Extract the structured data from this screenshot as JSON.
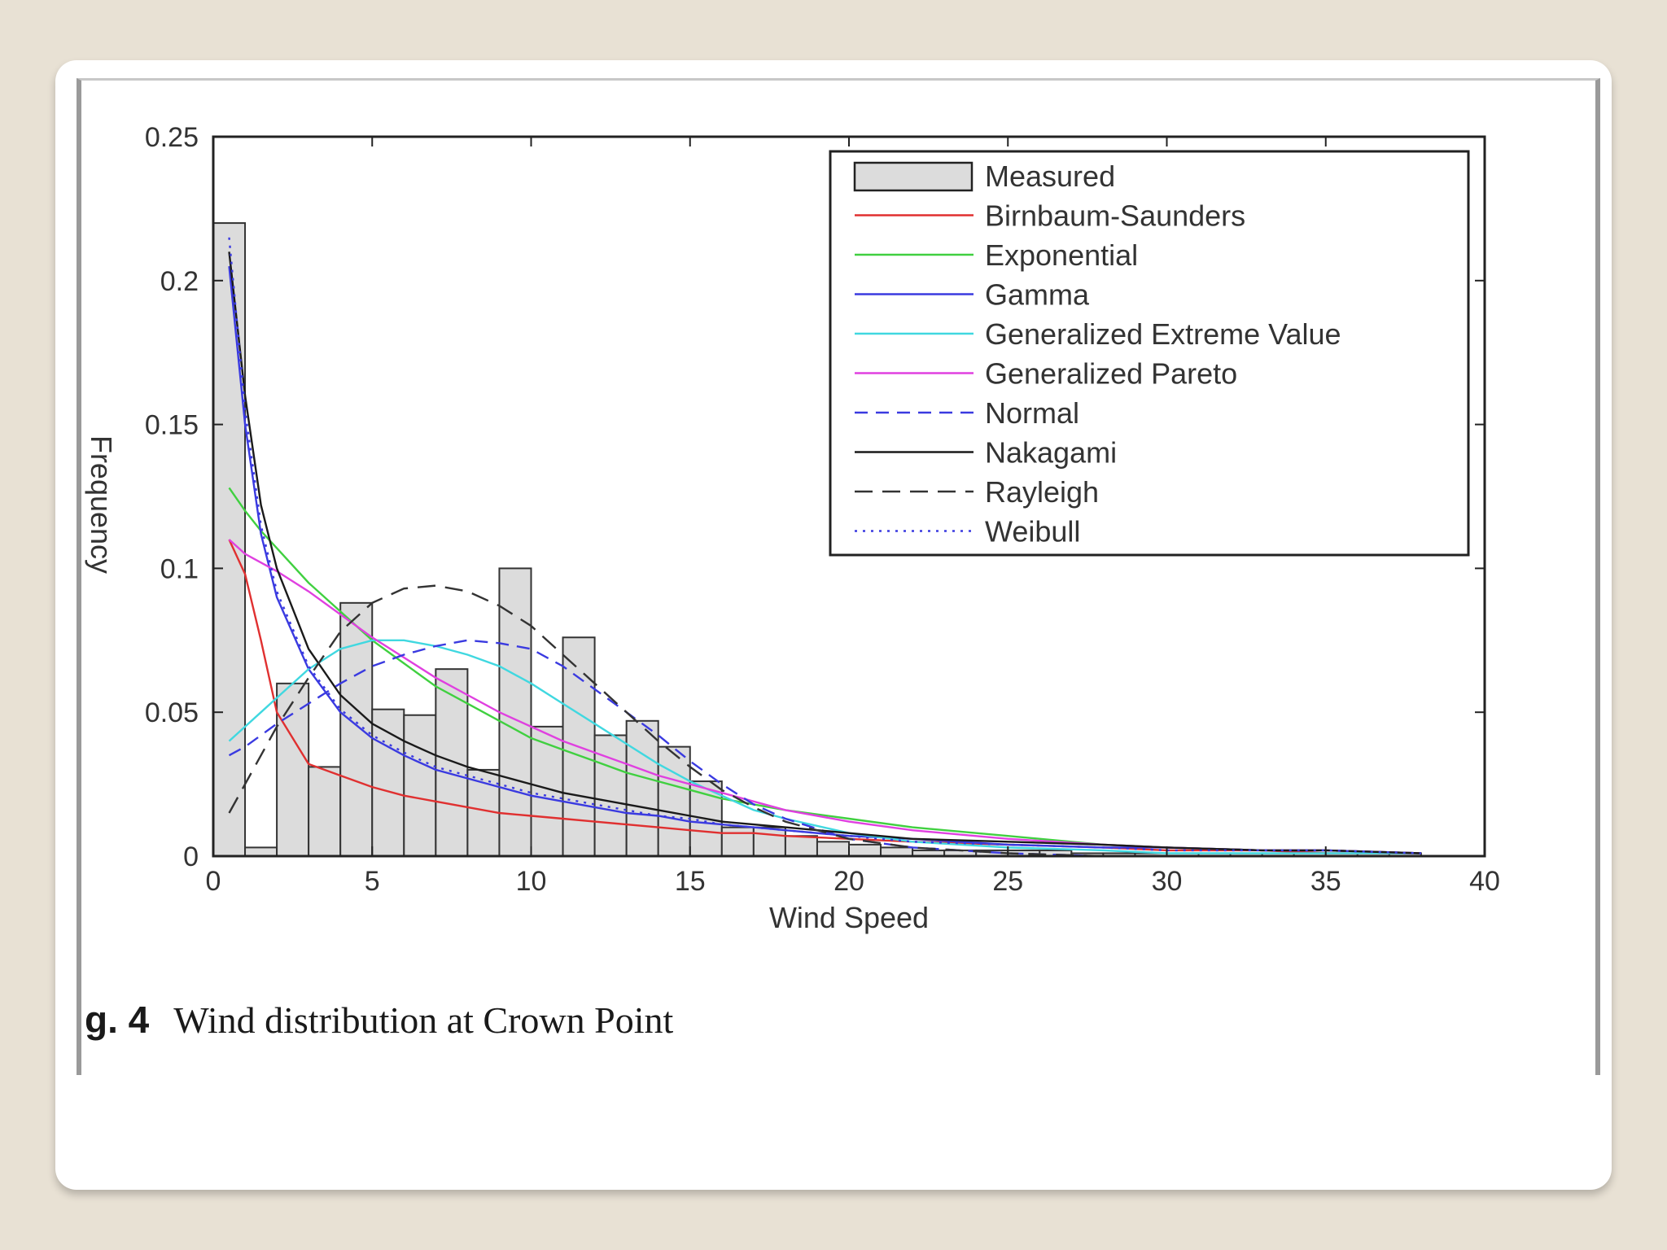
{
  "caption": {
    "label": "g. 4",
    "text": "Wind distribution at Crown Point"
  },
  "chart_data": {
    "type": "bar",
    "title": "",
    "xlabel": "Wind Speed",
    "ylabel": "Frequency",
    "xlim": [
      0,
      40
    ],
    "ylim": [
      0,
      0.25
    ],
    "xticks": [
      0,
      5,
      10,
      15,
      20,
      25,
      30,
      35,
      40
    ],
    "yticks": [
      0,
      0.05,
      0.1,
      0.15,
      0.2,
      0.25
    ],
    "ytick_labels": [
      "0",
      "0.05",
      "0.1",
      "0.15",
      "0.2",
      "0.25"
    ],
    "legend_position": "top-right",
    "histogram": {
      "name": "Measured",
      "color": "#dcdcdc",
      "bin_width": 1,
      "bin_starts": [
        0,
        1,
        2,
        3,
        4,
        5,
        6,
        7,
        8,
        9,
        10,
        11,
        12,
        13,
        14,
        15,
        16,
        17,
        18,
        19,
        20,
        21,
        22,
        23,
        24,
        25,
        26,
        27,
        28,
        29,
        30,
        31,
        32,
        33,
        34,
        35,
        36,
        37
      ],
      "values": [
        0.22,
        0.003,
        0.06,
        0.031,
        0.088,
        0.051,
        0.049,
        0.065,
        0.03,
        0.1,
        0.045,
        0.076,
        0.042,
        0.047,
        0.038,
        0.026,
        0.01,
        0.01,
        0.007,
        0.005,
        0.004,
        0.003,
        0.002,
        0.002,
        0.002,
        0.002,
        0.002,
        0.001,
        0.001,
        0.001,
        0.001,
        0.001,
        0.001,
        0.001,
        0.001,
        0.001,
        0.001,
        0.001
      ]
    },
    "x": [
      0.5,
      1,
      1.5,
      2,
      3,
      4,
      5,
      6,
      7,
      8,
      9,
      10,
      11,
      12,
      13,
      14,
      15,
      16,
      17,
      18,
      20,
      22,
      25,
      28,
      30,
      33,
      35,
      38
    ],
    "series": [
      {
        "name": "Birnbaum-Saunders",
        "color": "#e03030",
        "dash": "",
        "values": [
          0.11,
          0.098,
          0.075,
          0.05,
          0.032,
          0.028,
          0.024,
          0.021,
          0.019,
          0.017,
          0.015,
          0.014,
          0.013,
          0.012,
          0.011,
          0.01,
          0.009,
          0.008,
          0.008,
          0.007,
          0.006,
          0.005,
          0.004,
          0.003,
          0.002,
          0.002,
          0.001,
          0.001
        ]
      },
      {
        "name": "Exponential",
        "color": "#40d040",
        "dash": "",
        "values": [
          0.128,
          0.12,
          0.113,
          0.107,
          0.095,
          0.085,
          0.075,
          0.067,
          0.059,
          0.053,
          0.047,
          0.041,
          0.037,
          0.033,
          0.029,
          0.026,
          0.023,
          0.02,
          0.018,
          0.016,
          0.013,
          0.01,
          0.007,
          0.004,
          0.003,
          0.002,
          0.002,
          0.001
        ]
      },
      {
        "name": "Gamma",
        "color": "#3a3ae0",
        "dash": "",
        "values": [
          0.205,
          0.15,
          0.112,
          0.09,
          0.065,
          0.05,
          0.041,
          0.035,
          0.03,
          0.027,
          0.024,
          0.021,
          0.019,
          0.017,
          0.015,
          0.014,
          0.012,
          0.011,
          0.01,
          0.009,
          0.007,
          0.006,
          0.004,
          0.003,
          0.003,
          0.002,
          0.002,
          0.001
        ]
      },
      {
        "name": "Generalized Extreme Value",
        "color": "#40d8e0",
        "dash": "",
        "values": [
          0.04,
          0.045,
          0.05,
          0.055,
          0.065,
          0.072,
          0.075,
          0.075,
          0.073,
          0.07,
          0.066,
          0.06,
          0.053,
          0.046,
          0.039,
          0.032,
          0.026,
          0.021,
          0.016,
          0.013,
          0.008,
          0.005,
          0.003,
          0.002,
          0.001,
          0.001,
          0.001,
          0.001
        ]
      },
      {
        "name": "Generalized Pareto",
        "color": "#e040e0",
        "dash": "",
        "values": [
          0.11,
          0.105,
          0.102,
          0.099,
          0.092,
          0.084,
          0.076,
          0.069,
          0.062,
          0.056,
          0.05,
          0.045,
          0.04,
          0.036,
          0.032,
          0.028,
          0.025,
          0.022,
          0.019,
          0.016,
          0.012,
          0.009,
          0.006,
          0.004,
          0.003,
          0.002,
          0.002,
          0.001
        ]
      },
      {
        "name": "Normal",
        "color": "#3a3ae0",
        "dash": "16,10",
        "values": [
          0.035,
          0.038,
          0.042,
          0.046,
          0.053,
          0.06,
          0.066,
          0.07,
          0.073,
          0.075,
          0.074,
          0.072,
          0.066,
          0.058,
          0.05,
          0.042,
          0.033,
          0.025,
          0.018,
          0.013,
          0.006,
          0.003,
          0.001,
          0.0,
          0.0,
          0.0,
          0.0,
          0.0
        ]
      },
      {
        "name": "Nakagami",
        "color": "#1a1a1a",
        "dash": "",
        "values": [
          0.21,
          0.16,
          0.122,
          0.1,
          0.072,
          0.056,
          0.046,
          0.04,
          0.035,
          0.031,
          0.028,
          0.025,
          0.022,
          0.02,
          0.018,
          0.016,
          0.014,
          0.012,
          0.011,
          0.01,
          0.008,
          0.006,
          0.005,
          0.004,
          0.003,
          0.002,
          0.002,
          0.001
        ]
      },
      {
        "name": "Rayleigh",
        "color": "#333333",
        "dash": "22,12",
        "values": [
          0.015,
          0.025,
          0.035,
          0.045,
          0.062,
          0.078,
          0.088,
          0.093,
          0.094,
          0.092,
          0.087,
          0.08,
          0.07,
          0.06,
          0.05,
          0.04,
          0.031,
          0.023,
          0.017,
          0.012,
          0.006,
          0.003,
          0.001,
          0.0,
          0.0,
          0.0,
          0.0,
          0.0
        ]
      },
      {
        "name": "Weibull",
        "color": "#3a3ae0",
        "dash": "3,7",
        "values": [
          0.215,
          0.155,
          0.115,
          0.092,
          0.066,
          0.051,
          0.042,
          0.036,
          0.031,
          0.028,
          0.025,
          0.022,
          0.02,
          0.018,
          0.016,
          0.014,
          0.013,
          0.011,
          0.01,
          0.009,
          0.007,
          0.005,
          0.004,
          0.003,
          0.002,
          0.002,
          0.002,
          0.001
        ]
      }
    ]
  }
}
